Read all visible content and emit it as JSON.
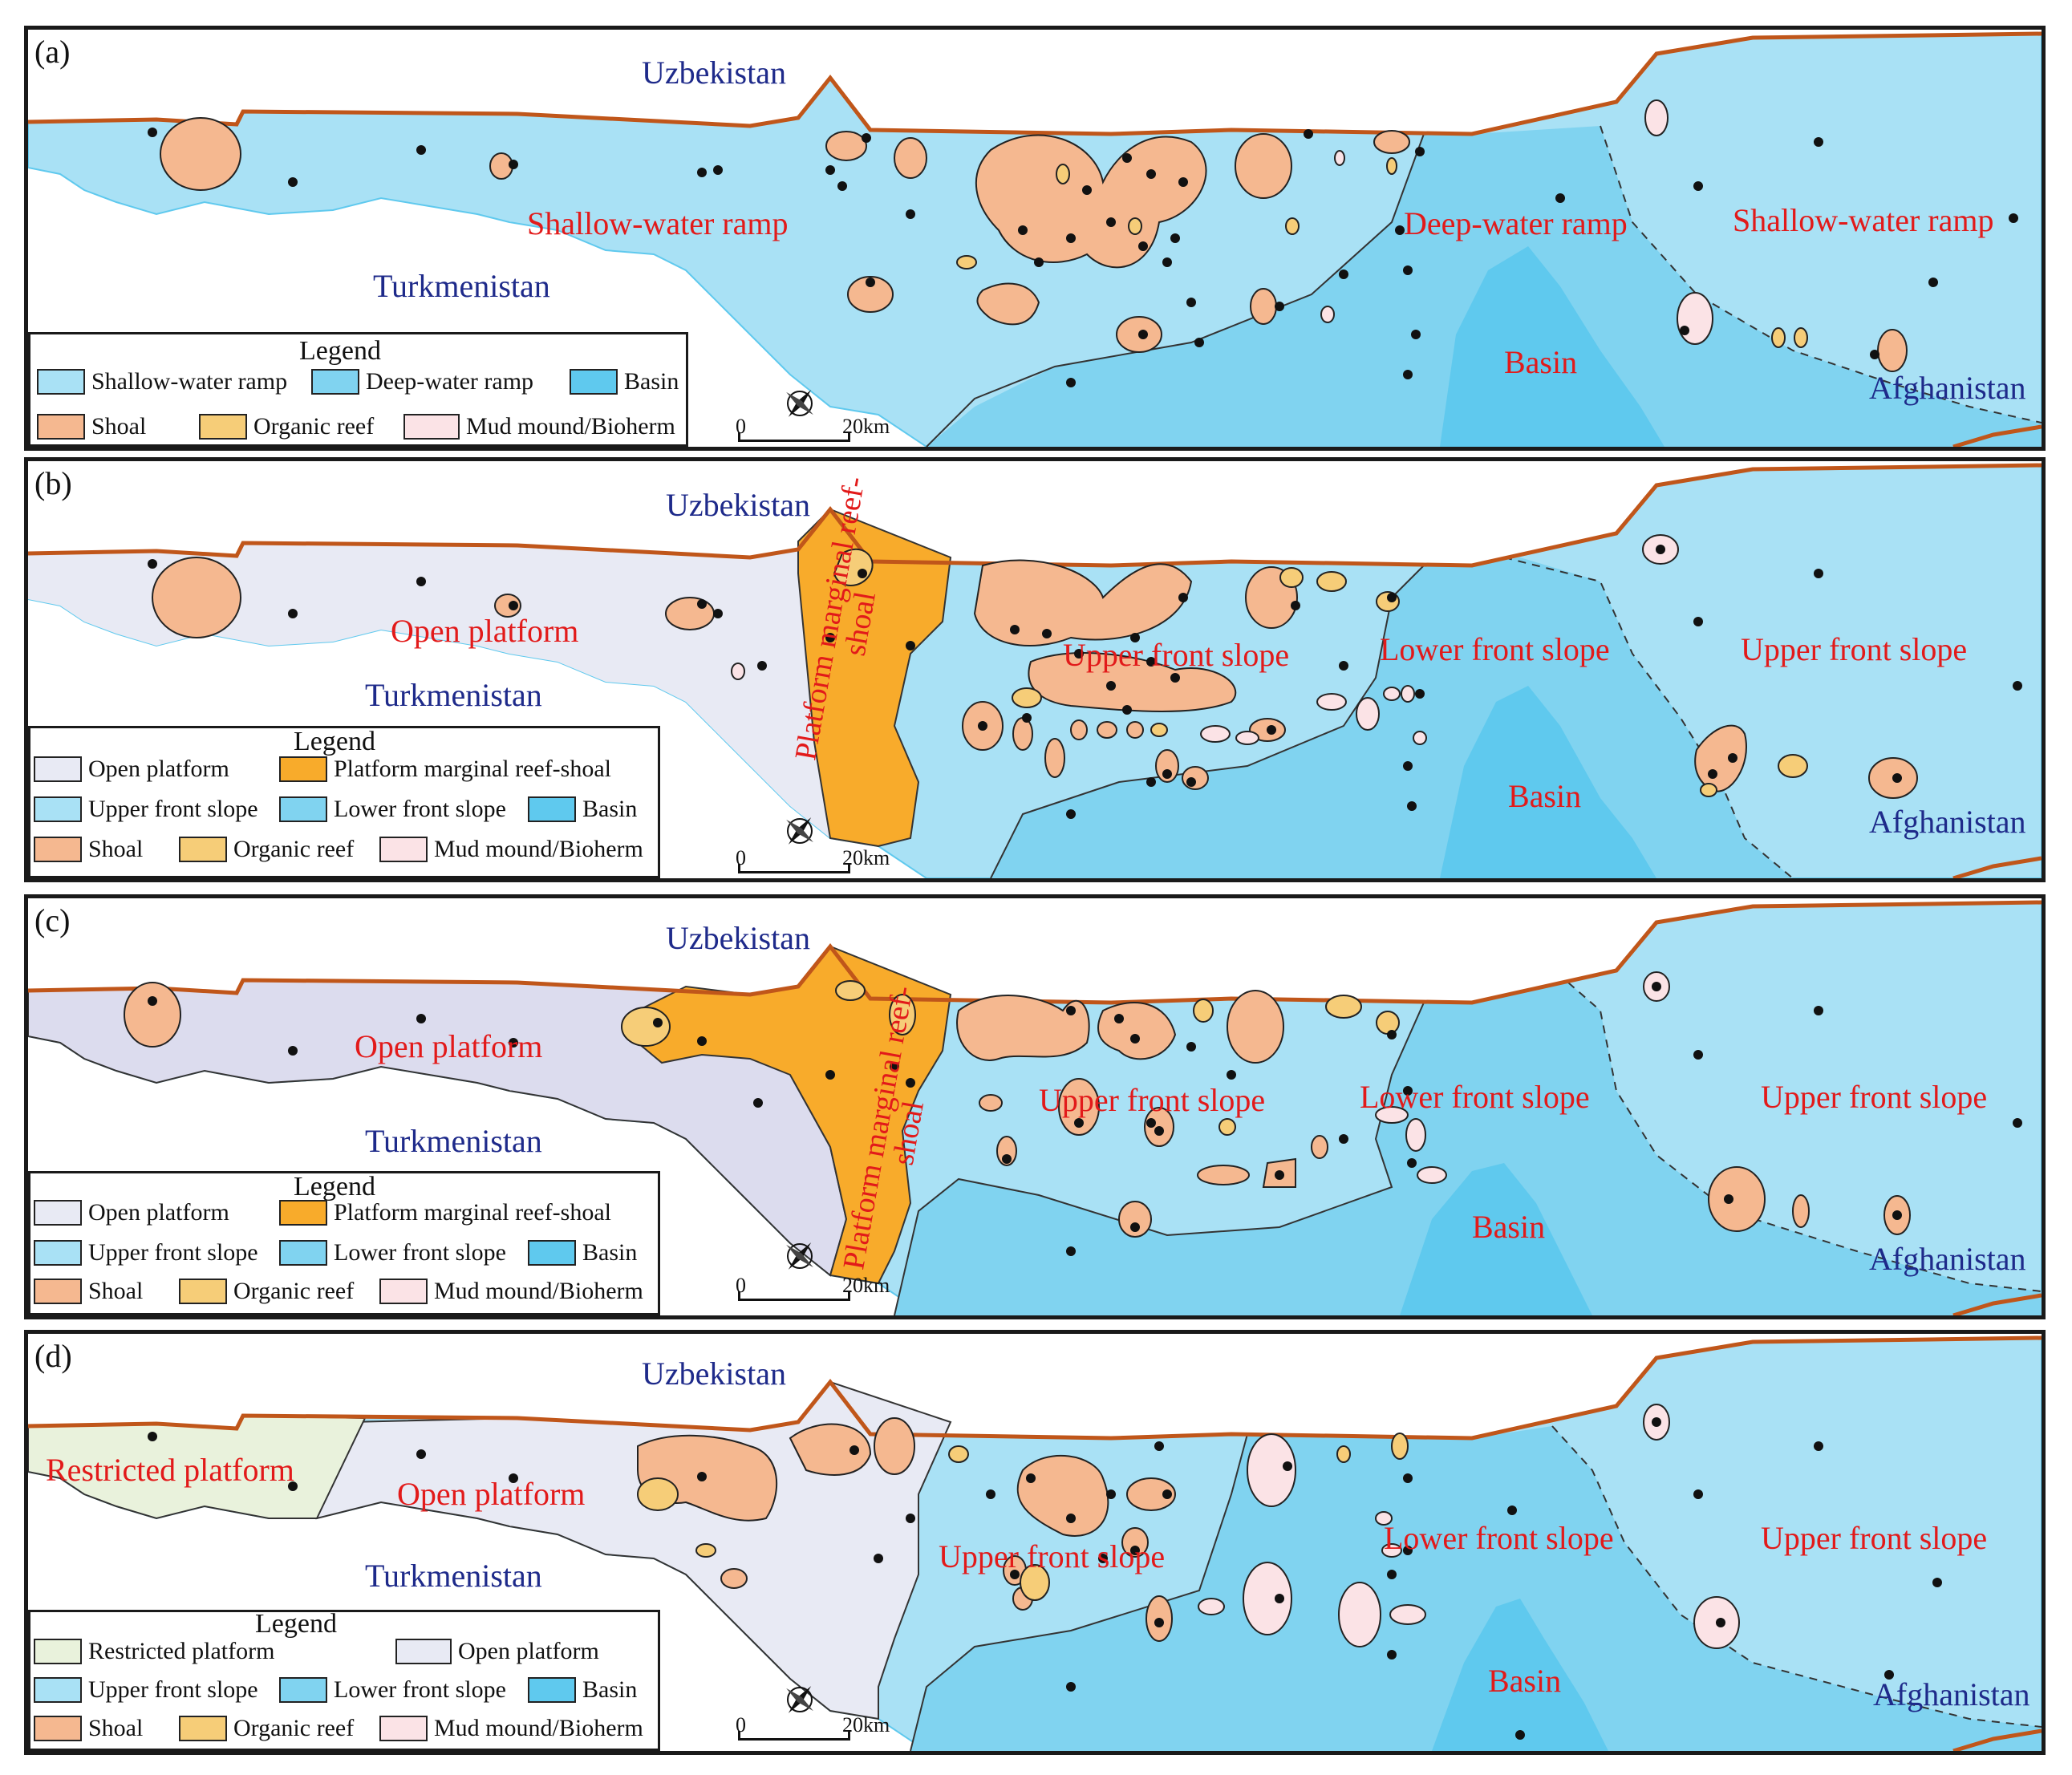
{
  "colors": {
    "shallow_ramp": "#a9e1f5",
    "deep_ramp": "#80d3f0",
    "basin": "#5fc9ee",
    "open_platform": "#e8eaf4",
    "open_platform_c": "#dcdcee",
    "restricted_platform": "#e9f2dc",
    "upper_front_slope": "#a9e1f5",
    "lower_front_slope": "#80d3f0",
    "reef_shoal_margin": "#f8ab2b",
    "shoal": "#f5b890",
    "organic_reef": "#f6cd78",
    "mud_mound": "#fbe3e6",
    "outside": "#ffffff",
    "border_line": "#c0561a",
    "zone_text": "#e21a1a",
    "country_text": "#1e2a8a"
  },
  "panels": [
    {
      "id": "a",
      "label": "(a)",
      "countries": {
        "north": "Uzbekistan",
        "south": "Turkmenistan",
        "east": "Afghanistan"
      },
      "zones": [
        "Shallow-water ramp",
        "Deep-water ramp",
        "Shallow-water ramp",
        "Basin"
      ],
      "legend": {
        "title": "Legend",
        "items": [
          {
            "label": "Shallow-water ramp",
            "color": "#a9e1f5"
          },
          {
            "label": "Deep-water ramp",
            "color": "#80d3f0"
          },
          {
            "label": "Basin",
            "color": "#5fc9ee"
          },
          {
            "label": "Shoal",
            "color": "#f5b890"
          },
          {
            "label": "Organic reef",
            "color": "#f6cd78"
          },
          {
            "label": "Mud mound/Bioherm",
            "color": "#fbe3e6"
          }
        ]
      },
      "scale": {
        "start": "0",
        "end": "20km"
      },
      "compass": "N"
    },
    {
      "id": "b",
      "label": "(b)",
      "countries": {
        "north": "Uzbekistan",
        "south": "Turkmenistan",
        "east": "Afghanistan"
      },
      "zones": [
        "Open platform",
        "Platform marginal reef-shoal",
        "Upper front slope",
        "Lower front slope",
        "Upper front slope",
        "Basin"
      ],
      "legend": {
        "title": "Legend",
        "items": [
          {
            "label": "Open platform",
            "color": "#e8eaf4"
          },
          {
            "label": "Platform marginal reef-shoal",
            "color": "#f8ab2b"
          },
          {
            "label": "Upper front slope",
            "color": "#a9e1f5"
          },
          {
            "label": "Lower front slope",
            "color": "#80d3f0"
          },
          {
            "label": "Basin",
            "color": "#5fc9ee"
          },
          {
            "label": "Shoal",
            "color": "#f5b890"
          },
          {
            "label": "Organic reef",
            "color": "#f6cd78"
          },
          {
            "label": "Mud mound/Bioherm",
            "color": "#fbe3e6"
          }
        ]
      },
      "scale": {
        "start": "0",
        "end": "20km"
      },
      "compass": "N"
    },
    {
      "id": "c",
      "label": "(c)",
      "countries": {
        "north": "Uzbekistan",
        "south": "Turkmenistan",
        "east": "Afghanistan"
      },
      "zones": [
        "Open platform",
        "Platform marginal reef-shoal",
        "Upper front slope",
        "Lower front slope",
        "Upper front slope",
        "Basin"
      ],
      "legend": {
        "title": "Legend",
        "items": [
          {
            "label": "Open platform",
            "color": "#e8eaf4"
          },
          {
            "label": "Platform marginal reef-shoal",
            "color": "#f8ab2b"
          },
          {
            "label": "Upper front slope",
            "color": "#a9e1f5"
          },
          {
            "label": "Lower front slope",
            "color": "#80d3f0"
          },
          {
            "label": "Basin",
            "color": "#5fc9ee"
          },
          {
            "label": "Shoal",
            "color": "#f5b890"
          },
          {
            "label": "Organic reef",
            "color": "#f6cd78"
          },
          {
            "label": "Mud mound/Bioherm",
            "color": "#fbe3e6"
          }
        ]
      },
      "scale": {
        "start": "0",
        "end": "20km"
      },
      "compass": "N"
    },
    {
      "id": "d",
      "label": "(d)",
      "countries": {
        "north": "Uzbekistan",
        "south": "Turkmenistan",
        "east": "Afghanistan"
      },
      "zones": [
        "Restricted platform",
        "Open platform",
        "Upper front slope",
        "Lower front slope",
        "Upper front slope",
        "Basin"
      ],
      "legend": {
        "title": "Legend",
        "items": [
          {
            "label": "Restricted platform",
            "color": "#e9f2dc"
          },
          {
            "label": "Open platform",
            "color": "#e8eaf4"
          },
          {
            "label": "Upper front slope",
            "color": "#a9e1f5"
          },
          {
            "label": "Lower front slope",
            "color": "#80d3f0"
          },
          {
            "label": "Basin",
            "color": "#5fc9ee"
          },
          {
            "label": "Shoal",
            "color": "#f5b890"
          },
          {
            "label": "Organic reef",
            "color": "#f6cd78"
          },
          {
            "label": "Mud mound/Bioherm",
            "color": "#fbe3e6"
          }
        ]
      },
      "scale": {
        "start": "0",
        "end": "20km"
      },
      "compass": "N"
    }
  ]
}
